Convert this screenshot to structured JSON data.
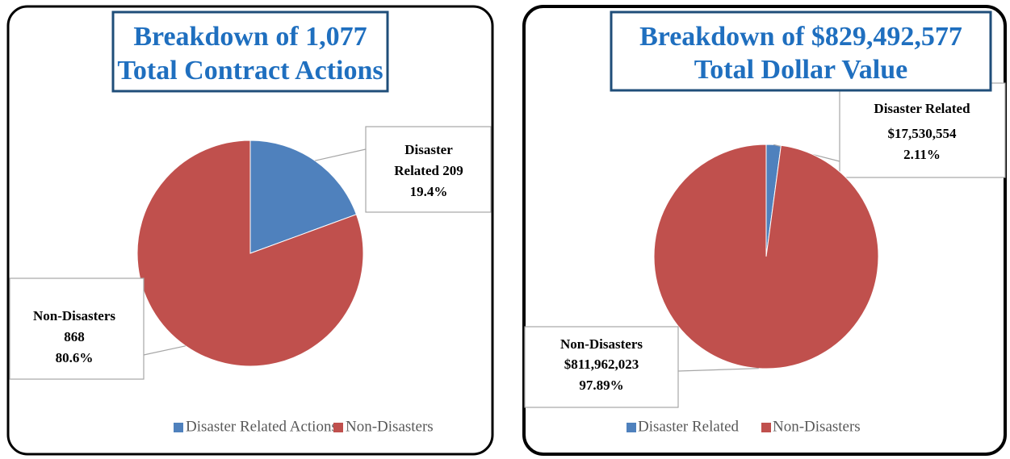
{
  "chart_data": [
    {
      "type": "pie",
      "title": [
        "Breakdown of 1,077",
        "Total Contract Actions"
      ],
      "categories": [
        "Disaster Related Actions",
        "Non-Disasters"
      ],
      "values": [
        209,
        868
      ],
      "value_labels": [
        [
          "Disaster",
          "Related 209",
          "19.4%"
        ],
        [
          "Non-Disasters",
          "868",
          "80.6%"
        ]
      ],
      "colors": [
        "#4f81bd",
        "#c0504d"
      ],
      "legend": "bottom"
    },
    {
      "type": "pie",
      "title": [
        "Breakdown of $829,492,577",
        "Total Dollar Value"
      ],
      "categories": [
        "Disaster Related",
        "Non-Disasters"
      ],
      "values": [
        17530554,
        811962023
      ],
      "value_labels": [
        [
          "Disaster Related",
          "$17,530,554",
          "2.11%"
        ],
        [
          "Non-Disasters",
          "$811,962,023",
          "97.89%"
        ]
      ],
      "colors": [
        "#4f81bd",
        "#c0504d"
      ],
      "legend": "bottom"
    }
  ]
}
